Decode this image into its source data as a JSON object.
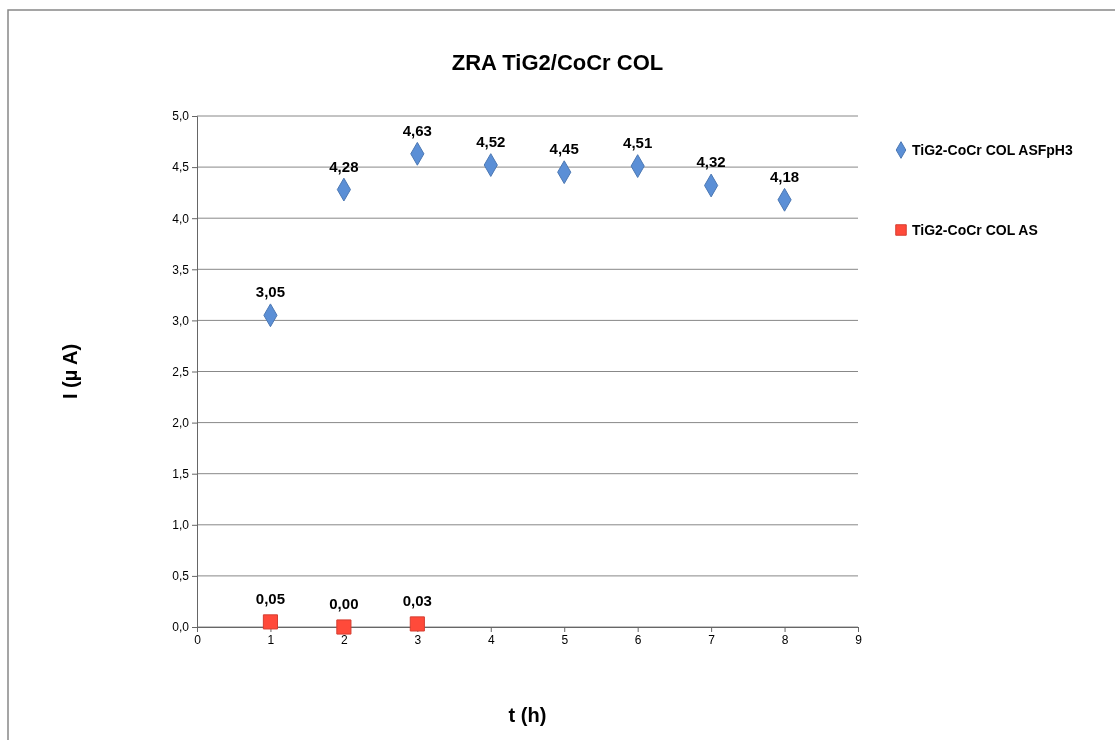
{
  "chart_data": {
    "type": "scatter",
    "title": "ZRA TiG2/CoCr COL",
    "xlabel": "t (h)",
    "ylabel": "I (µ A)",
    "xlim": [
      0,
      9
    ],
    "xticks": [
      0,
      1,
      2,
      3,
      4,
      5,
      6,
      7,
      8,
      9
    ],
    "ylim": [
      0,
      5
    ],
    "yticks": [
      {
        "value": 0,
        "label": "0,0"
      },
      {
        "value": 0.5,
        "label": "0,5"
      },
      {
        "value": 1,
        "label": "1,0"
      },
      {
        "value": 1.5,
        "label": "1,5"
      },
      {
        "value": 2,
        "label": "2,0"
      },
      {
        "value": 2.5,
        "label": "2,5"
      },
      {
        "value": 3,
        "label": "3,0"
      },
      {
        "value": 3.5,
        "label": "3,5"
      },
      {
        "value": 4,
        "label": "4,0"
      },
      {
        "value": 4.5,
        "label": "4,5"
      },
      {
        "value": 5,
        "label": "5,0"
      }
    ],
    "grid": "y",
    "legend": "right",
    "series": [
      {
        "name": "TiG2-CoCr COL ASFpH3",
        "color": "#5b8fd6",
        "marker": "diamond",
        "x": [
          1,
          2,
          3,
          4,
          5,
          6,
          7,
          8
        ],
        "values": [
          3.05,
          4.28,
          4.63,
          4.52,
          4.45,
          4.51,
          4.32,
          4.18
        ],
        "value_labels": [
          "3,05",
          "4,28",
          "4,63",
          "4,52",
          "4,45",
          "4,51",
          "4,32",
          "4,18"
        ]
      },
      {
        "name": "TiG2-CoCr COL AS",
        "color": "#ff4a3a",
        "marker": "square",
        "x": [
          1,
          2,
          3
        ],
        "values": [
          0.05,
          0.0,
          0.03
        ],
        "value_labels": [
          "0,05",
          "0,00",
          "0,03"
        ]
      }
    ]
  }
}
